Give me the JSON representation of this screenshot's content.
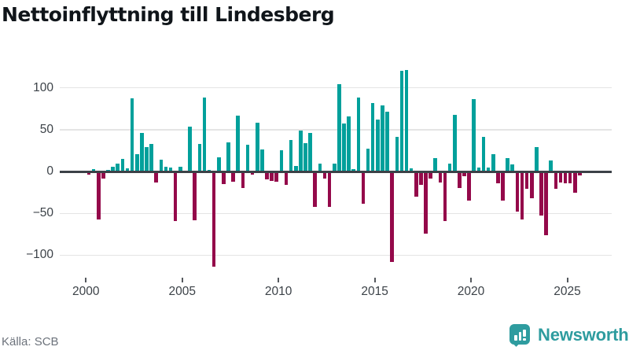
{
  "title": "Nettoinflyttning till Lindesberg",
  "source": "Källa: SCB",
  "logo": {
    "text": "Newsworthy"
  },
  "colors": {
    "positive": "#00a09b",
    "negative": "#94094a",
    "axis": "#3c4147",
    "gridline": "#e4e4e4",
    "tick_text": "#3c4248",
    "title_text": "#10151a",
    "source_text": "#6d737c",
    "logo_teal": "#2e9c9f"
  },
  "chart_data": {
    "type": "bar",
    "title": "Nettoinflyttning till Lindesberg",
    "frequency": "quarterly",
    "x_start": "2000-Q1",
    "x_end": "2025-Q3",
    "x_ticks": [
      2000,
      2005,
      2010,
      2015,
      2020,
      2025
    ],
    "y_ticks": [
      100,
      50,
      0,
      -50,
      -100
    ],
    "ylim": [
      -125,
      125
    ],
    "grid": true,
    "legend": false,
    "series": [
      {
        "name": "Nettoinflyttning",
        "values": [
          -4,
          3,
          -57,
          -8,
          2,
          6,
          9,
          15,
          4,
          87,
          21,
          46,
          29,
          33,
          -13,
          14,
          6,
          5,
          -59,
          6,
          0,
          54,
          -58,
          33,
          88,
          2,
          -114,
          17,
          -15,
          35,
          -12,
          67,
          -20,
          32,
          -4,
          58,
          26,
          -9,
          -11,
          -12,
          25,
          -16,
          38,
          7,
          49,
          34,
          46,
          -42,
          9,
          -8,
          -42,
          9,
          104,
          57,
          66,
          3,
          88,
          -39,
          27,
          82,
          62,
          79,
          71,
          -108,
          41,
          120,
          121,
          4,
          -30,
          -16,
          -74,
          -8,
          16,
          -13,
          -59,
          9,
          68,
          -20,
          -6,
          -35,
          86,
          5,
          41,
          5,
          21,
          -14,
          -35,
          16,
          8,
          -48,
          -57,
          -21,
          -32,
          29,
          -53,
          -76,
          13,
          -21,
          -13,
          -14,
          -14,
          -25,
          -5
        ]
      }
    ]
  }
}
